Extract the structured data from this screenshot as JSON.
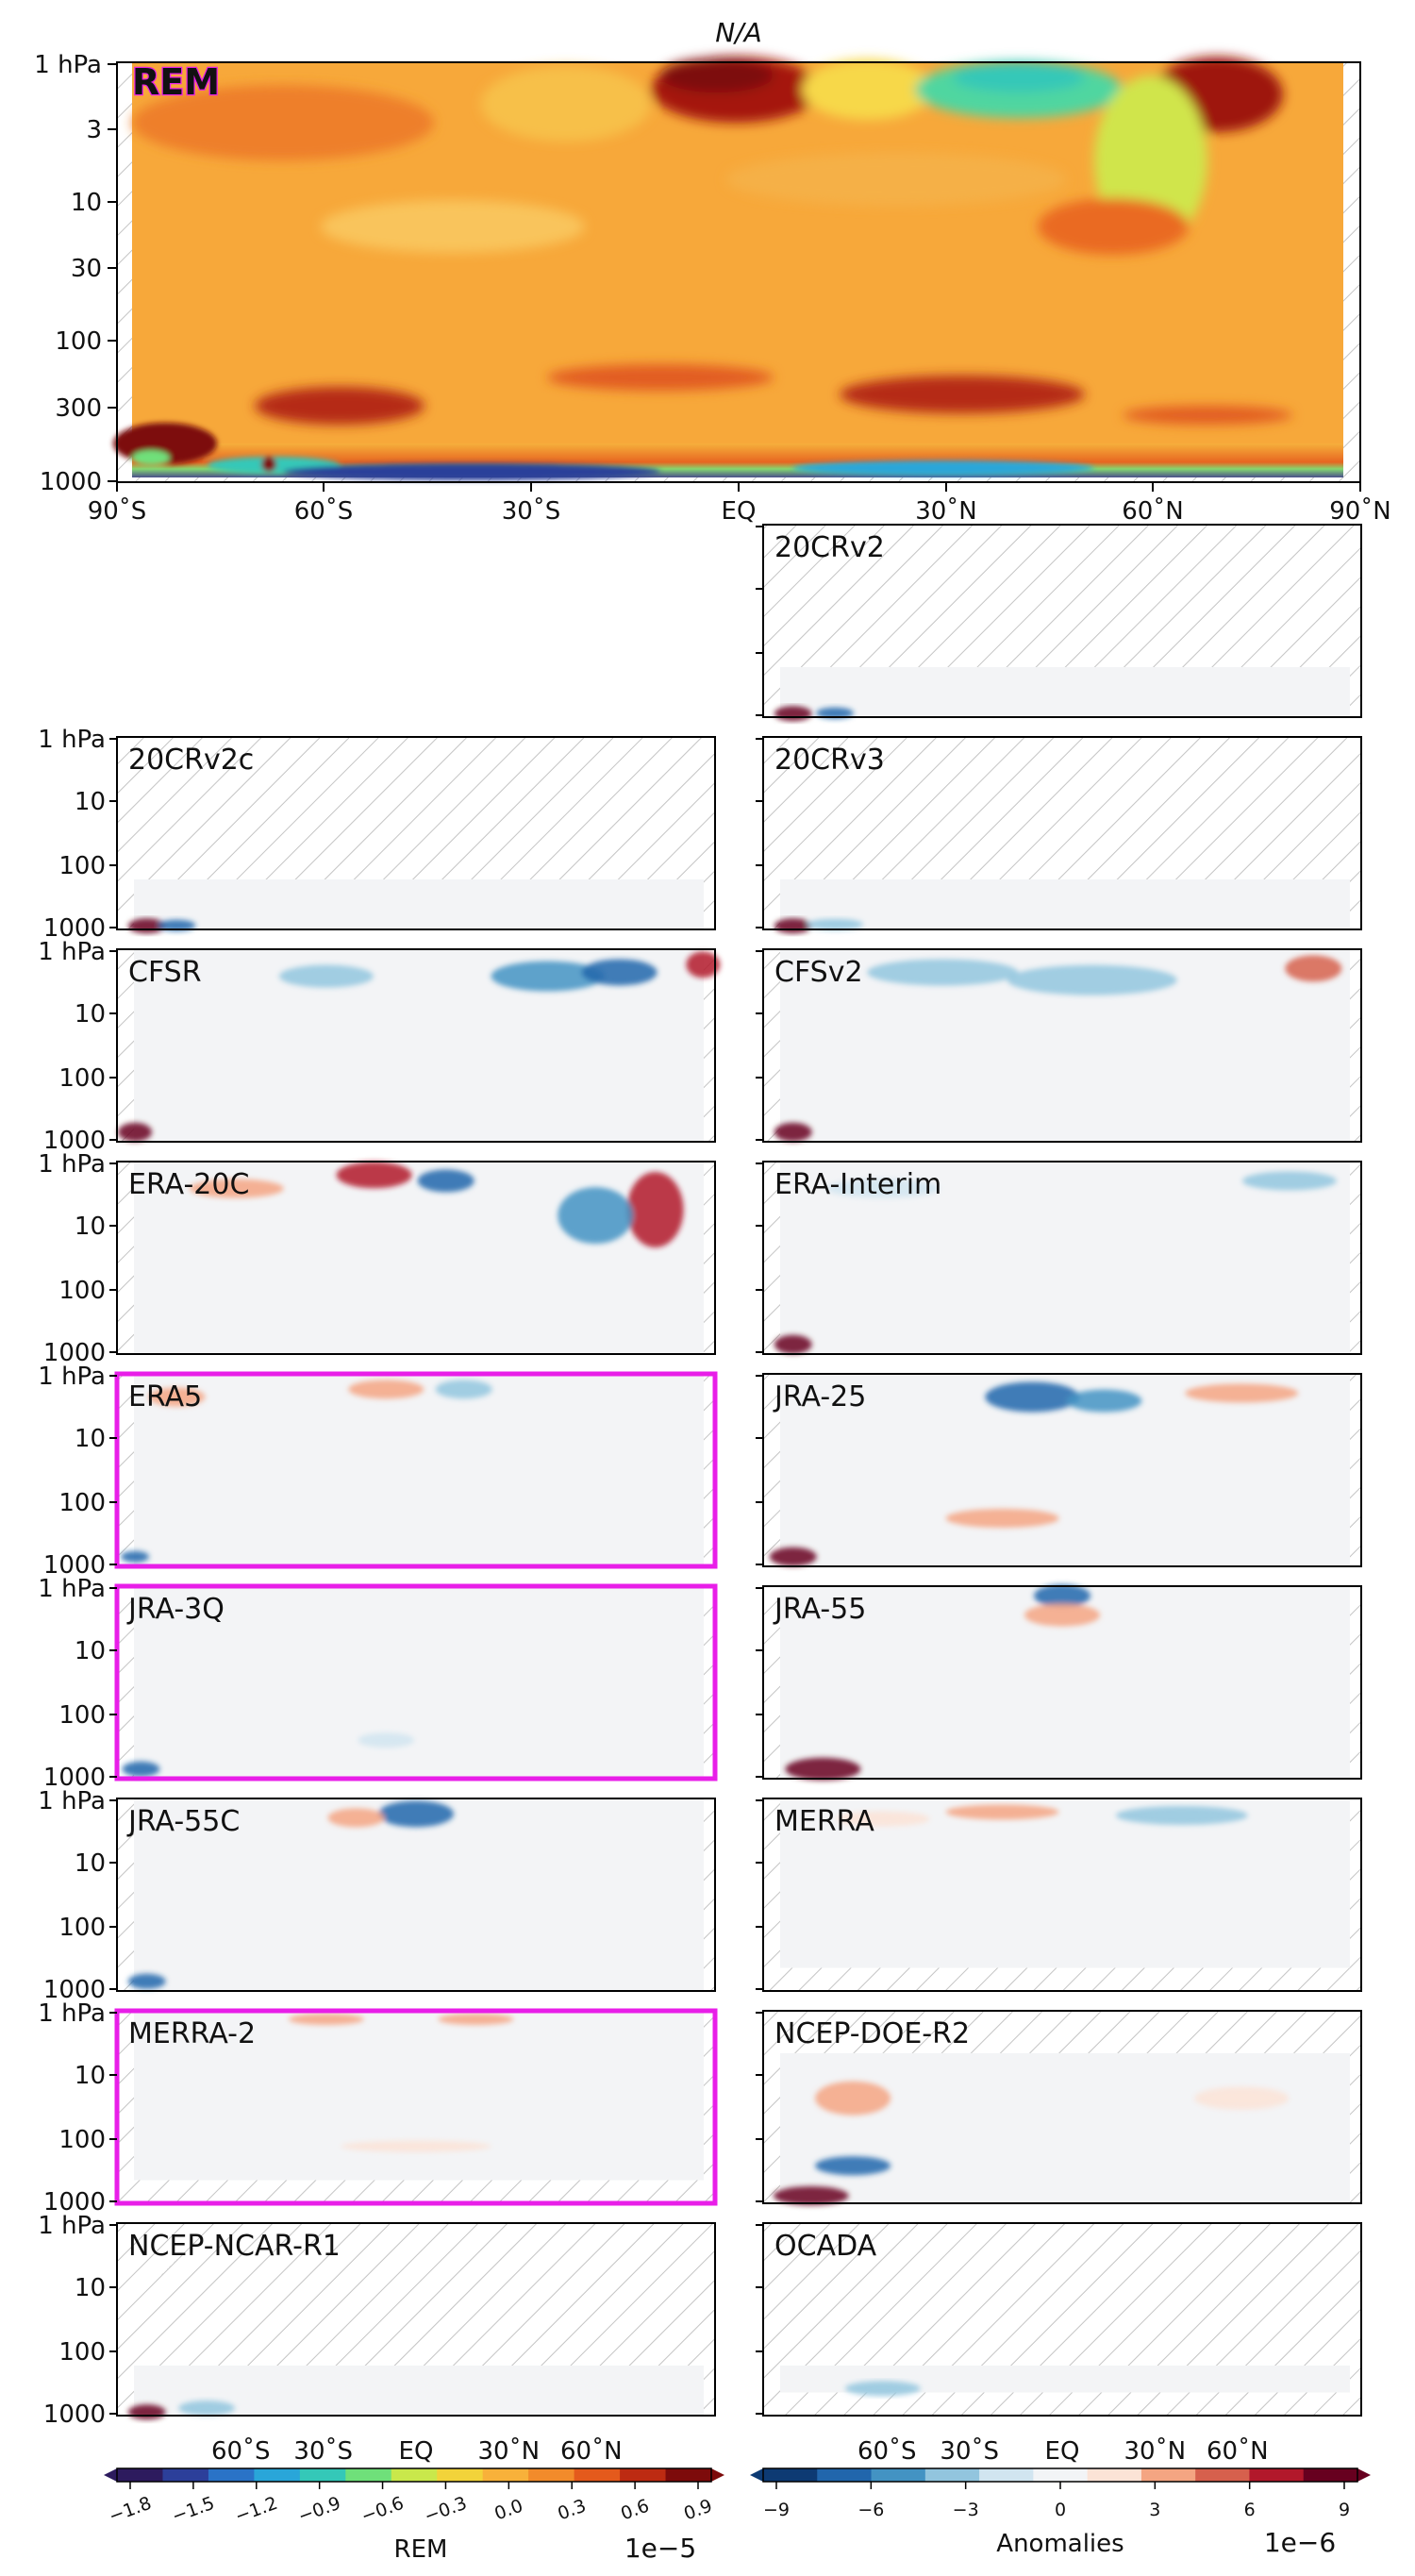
{
  "figure": {
    "title": "N/A",
    "main_panel_label": "REM",
    "x_ticks": [
      "90˚S",
      "60˚S",
      "30˚S",
      "EQ",
      "30˚N",
      "60˚N",
      "90˚N"
    ],
    "small_x_ticks": [
      "60˚S",
      "30˚S",
      "EQ",
      "30˚N",
      "60˚N"
    ],
    "main_y_ticks": [
      "1 hPa",
      "3",
      "10",
      "30",
      "100",
      "300",
      "1000"
    ],
    "small_y_ticks": [
      "1 hPa",
      "10",
      "100",
      "1000"
    ],
    "colorbar_left": {
      "label": "REM",
      "exponent": "1e−5",
      "ticks": [
        "−1.8",
        "−1.5",
        "−1.2",
        "−0.9",
        "−0.6",
        "−0.3",
        "0.0",
        "0.3",
        "0.6",
        "0.9"
      ],
      "colors": [
        "#2d1b5e",
        "#2c3f9a",
        "#2a73c7",
        "#29a6d9",
        "#34c8b8",
        "#6fe07a",
        "#c9e84b",
        "#f2d33a",
        "#f8b13a",
        "#f28b2b",
        "#e45a1c",
        "#bd2b12",
        "#7d0b0b"
      ]
    },
    "colorbar_right": {
      "label": "Anomalies",
      "exponent": "1e−6",
      "ticks": [
        "−9",
        "−6",
        "−3",
        "0",
        "3",
        "6",
        "9"
      ],
      "colors": [
        "#0d3a73",
        "#2166ac",
        "#4393c3",
        "#92c5de",
        "#d1e5f0",
        "#f2f4f6",
        "#fbe3d6",
        "#f4a582",
        "#d6604d",
        "#b2182b",
        "#67001f"
      ]
    },
    "panels": [
      {
        "name": "20CRv2",
        "highlighted": false
      },
      {
        "name": "20CRv2c",
        "highlighted": false
      },
      {
        "name": "20CRv3",
        "highlighted": false
      },
      {
        "name": "CFSR",
        "highlighted": false
      },
      {
        "name": "CFSv2",
        "highlighted": false
      },
      {
        "name": "ERA-20C",
        "highlighted": false
      },
      {
        "name": "ERA-Interim",
        "highlighted": false
      },
      {
        "name": "ERA5",
        "highlighted": true
      },
      {
        "name": "JRA-25",
        "highlighted": false
      },
      {
        "name": "JRA-3Q",
        "highlighted": true
      },
      {
        "name": "JRA-55",
        "highlighted": false
      },
      {
        "name": "JRA-55C",
        "highlighted": false
      },
      {
        "name": "MERRA",
        "highlighted": false
      },
      {
        "name": "MERRA-2",
        "highlighted": true
      },
      {
        "name": "NCEP-DOE-R2",
        "highlighted": false
      },
      {
        "name": "NCEP-NCAR-R1",
        "highlighted": false
      },
      {
        "name": "OCADA",
        "highlighted": false
      }
    ],
    "highlight_color": "#e81ee8"
  }
}
